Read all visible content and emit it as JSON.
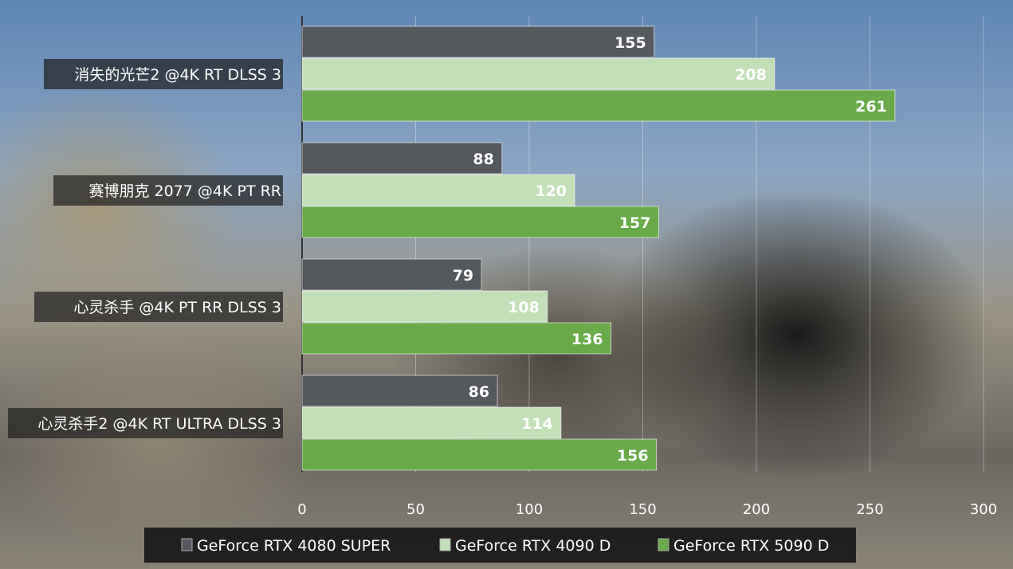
{
  "chart_data": {
    "type": "bar",
    "orientation": "horizontal",
    "categories": [
      "消失的光芒2 @4K RT DLSS 3",
      "赛博朋克 2077 @4K PT RR",
      "心灵杀手 @4K PT RR DLSS 3",
      "心灵杀手2 @4K RT ULTRA DLSS 3"
    ],
    "series": [
      {
        "name": "GeForce RTX 4080 SUPER",
        "color": "#55585d",
        "values": [
          155,
          88,
          79,
          86
        ]
      },
      {
        "name": "GeForce RTX 4090 D",
        "color": "#c3dfb8",
        "values": [
          208,
          120,
          108,
          114
        ]
      },
      {
        "name": "GeForce RTX 5090 D",
        "color": "#6aaa4a",
        "values": [
          261,
          157,
          136,
          156
        ]
      }
    ],
    "xlim": [
      0,
      300
    ],
    "xticks": [
      0,
      50,
      100,
      150,
      200,
      250,
      300
    ],
    "grid": true,
    "legend_placement": "bottom",
    "title": "",
    "xlabel": "",
    "ylabel": ""
  }
}
